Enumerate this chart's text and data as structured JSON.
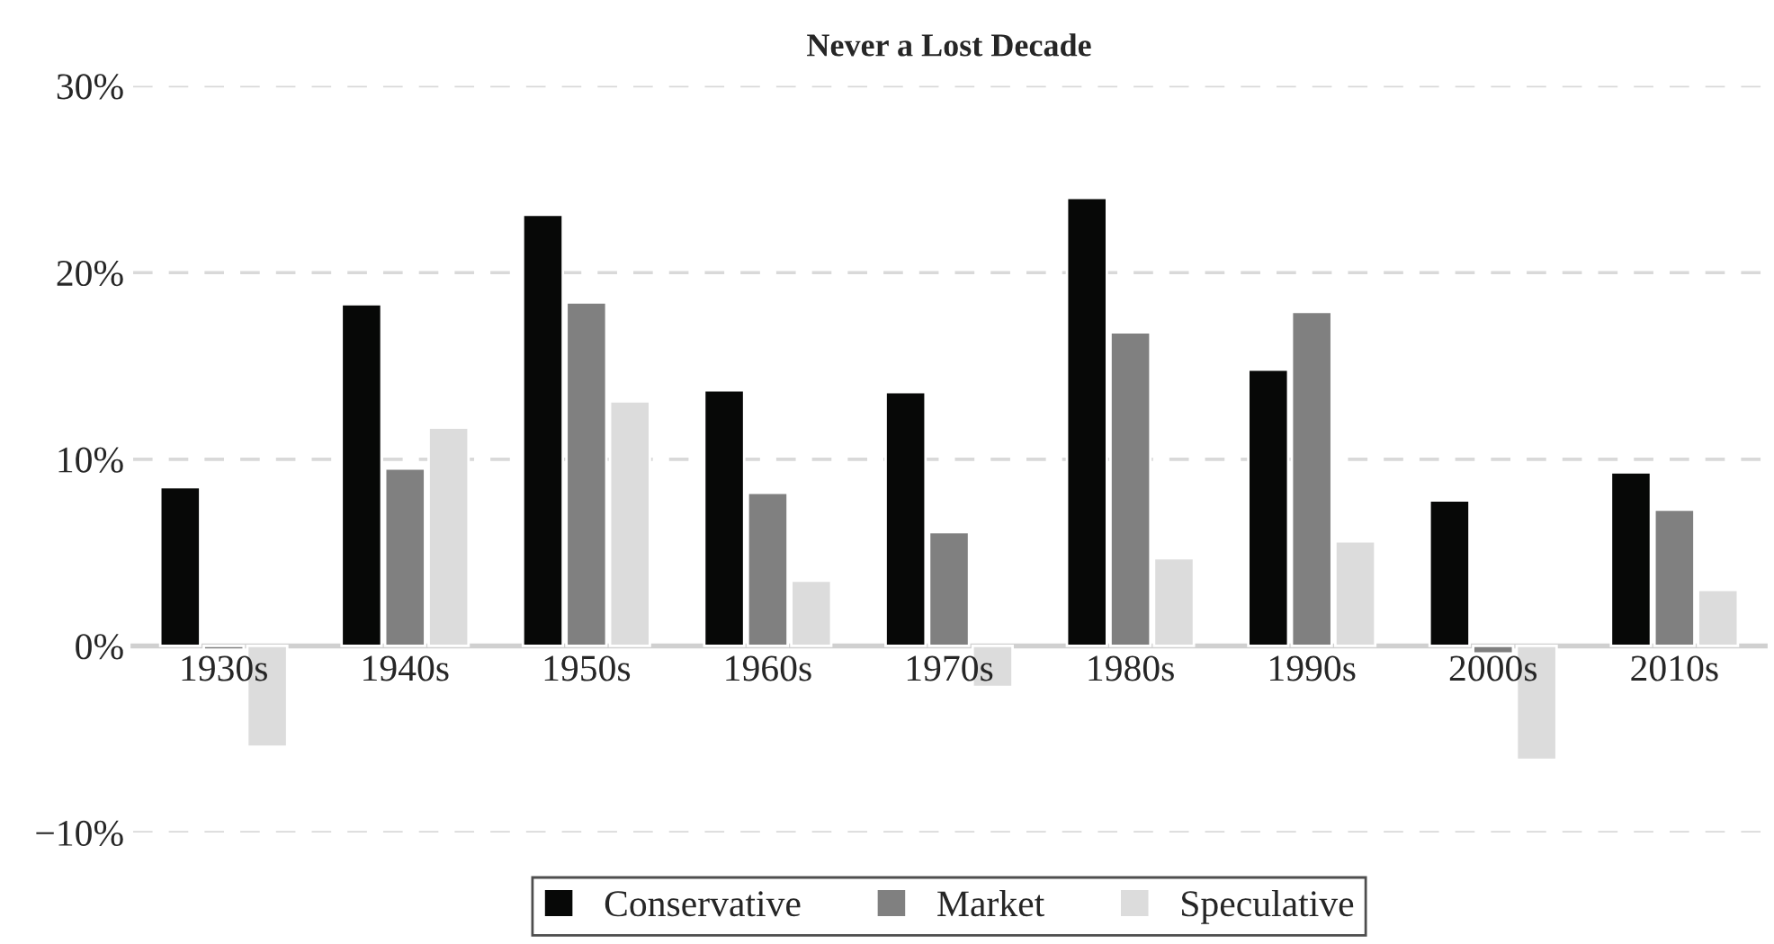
{
  "chart_data": {
    "type": "bar",
    "title": "Never a Lost Decade",
    "categories": [
      "1930s",
      "1940s",
      "1950s",
      "1960s",
      "1970s",
      "1980s",
      "1990s",
      "2000s",
      "2010s"
    ],
    "series": [
      {
        "name": "Conservative",
        "color": "#070807",
        "values": [
          8.5,
          18.3,
          23.1,
          13.7,
          13.6,
          24.0,
          14.8,
          7.8,
          9.3
        ]
      },
      {
        "name": "Market",
        "color": "#808080",
        "values": [
          -0.2,
          9.5,
          18.4,
          8.2,
          6.1,
          16.8,
          17.9,
          -0.4,
          7.3
        ]
      },
      {
        "name": "Speculative",
        "color": "#dcdcdc",
        "values": [
          -5.4,
          11.7,
          13.1,
          3.5,
          -2.2,
          4.7,
          5.6,
          -6.1,
          3.0
        ]
      }
    ],
    "ylim": [
      -10,
      30
    ],
    "yticks": [
      {
        "value": -10,
        "label": "−10%"
      },
      {
        "value": 0,
        "label": "0%"
      },
      {
        "value": 10,
        "label": "10%"
      },
      {
        "value": 20,
        "label": "20%"
      },
      {
        "value": 30,
        "label": "30%"
      }
    ],
    "grid": "y",
    "legend": "bottom"
  }
}
